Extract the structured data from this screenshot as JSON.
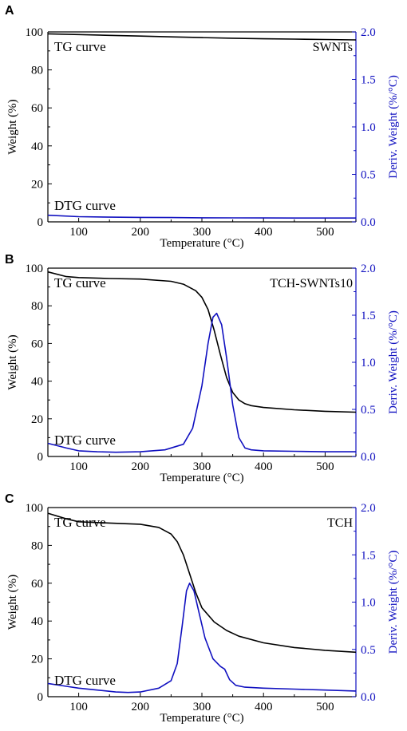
{
  "colors": {
    "tg": "#000000",
    "dtg": "#1010c0",
    "axis_left": "#000000",
    "axis_right": "#1010c0"
  },
  "chart_data": [
    {
      "panel": "A",
      "type": "line",
      "sample_label": "SWNTs",
      "tg_label": "TG curve",
      "dtg_label": "DTG curve",
      "xlabel": "Temperature (°C)",
      "ylabel": "Weight (%)",
      "ylabel_right": "Deriv. Weight (%/°C)",
      "xlim": [
        50,
        550
      ],
      "ylim": [
        0,
        100
      ],
      "ylim_right": [
        0,
        2.0
      ],
      "xticks": [
        100,
        200,
        300,
        400,
        500
      ],
      "yticks": [
        0,
        20,
        40,
        60,
        80,
        100
      ],
      "yticks_right": [
        "0.0",
        "0.5",
        "1.0",
        "1.5",
        "2.0"
      ],
      "series": [
        {
          "name": "TG curve",
          "axis": "left",
          "x": [
            50,
            100,
            150,
            200,
            250,
            300,
            350,
            400,
            450,
            500,
            550
          ],
          "y": [
            99,
            98.6,
            98.2,
            97.8,
            97.4,
            97.0,
            96.7,
            96.4,
            96.2,
            96.0,
            95.8
          ]
        },
        {
          "name": "DTG curve",
          "axis": "right",
          "x": [
            50,
            100,
            150,
            200,
            250,
            300,
            350,
            400,
            450,
            500,
            550
          ],
          "y": [
            0.07,
            0.055,
            0.05,
            0.047,
            0.045,
            0.043,
            0.042,
            0.041,
            0.04,
            0.04,
            0.04
          ]
        }
      ]
    },
    {
      "panel": "B",
      "type": "line",
      "sample_label": "TCH-SWNTs10",
      "tg_label": "TG curve",
      "dtg_label": "DTG curve",
      "xlabel": "Temperature (°C)",
      "ylabel": "Weight (%)",
      "ylabel_right": "Deriv. Weight (%/°C)",
      "xlim": [
        50,
        550
      ],
      "ylim": [
        0,
        100
      ],
      "ylim_right": [
        0,
        2.0
      ],
      "xticks": [
        100,
        200,
        300,
        400,
        500
      ],
      "yticks": [
        0,
        20,
        40,
        60,
        80,
        100
      ],
      "yticks_right": [
        "0.0",
        "0.5",
        "1.0",
        "1.5",
        "2.0"
      ],
      "series": [
        {
          "name": "TG curve",
          "axis": "left",
          "x": [
            50,
            80,
            100,
            150,
            200,
            250,
            270,
            290,
            300,
            310,
            320,
            330,
            340,
            350,
            360,
            370,
            380,
            400,
            450,
            500,
            550
          ],
          "y": [
            98,
            95.5,
            95,
            94.5,
            94.2,
            93,
            91.5,
            88,
            84.5,
            78,
            67,
            54,
            42,
            34,
            30,
            28,
            27,
            26,
            24.8,
            24,
            23.5
          ]
        },
        {
          "name": "DTG curve",
          "axis": "right",
          "x": [
            50,
            80,
            100,
            130,
            160,
            200,
            240,
            270,
            285,
            300,
            310,
            318,
            324,
            332,
            340,
            350,
            360,
            370,
            380,
            400,
            450,
            500,
            550
          ],
          "y": [
            0.14,
            0.09,
            0.06,
            0.05,
            0.045,
            0.05,
            0.07,
            0.13,
            0.3,
            0.75,
            1.2,
            1.48,
            1.52,
            1.4,
            1.05,
            0.55,
            0.2,
            0.09,
            0.07,
            0.06,
            0.055,
            0.05,
            0.05
          ]
        }
      ]
    },
    {
      "panel": "C",
      "type": "line",
      "sample_label": "TCH",
      "tg_label": "TG curve",
      "dtg_label": "DTG curve",
      "xlabel": "Temperature (°C)",
      "ylabel": "Weight (%)",
      "ylabel_right": "Deriv. Weight (%/°C)",
      "xlim": [
        50,
        550
      ],
      "ylim": [
        0,
        100
      ],
      "ylim_right": [
        0,
        2.0
      ],
      "xticks": [
        100,
        200,
        300,
        400,
        500
      ],
      "yticks": [
        0,
        20,
        40,
        60,
        80,
        100
      ],
      "yticks_right": [
        "0.0",
        "0.5",
        "1.0",
        "1.5",
        "2.0"
      ],
      "series": [
        {
          "name": "TG curve",
          "axis": "left",
          "x": [
            50,
            80,
            100,
            150,
            200,
            230,
            250,
            260,
            270,
            280,
            290,
            300,
            320,
            340,
            360,
            400,
            450,
            500,
            550
          ],
          "y": [
            97,
            94,
            92.5,
            91.8,
            91.2,
            89.5,
            86,
            82,
            75,
            65,
            55,
            47,
            39.5,
            35,
            32,
            28.5,
            26,
            24.5,
            23.5
          ]
        },
        {
          "name": "DTG curve",
          "axis": "right",
          "x": [
            50,
            80,
            100,
            130,
            160,
            180,
            200,
            230,
            250,
            260,
            268,
            275,
            280,
            287,
            295,
            305,
            318,
            330,
            337,
            345,
            355,
            370,
            400,
            450,
            500,
            550
          ],
          "y": [
            0.14,
            0.11,
            0.09,
            0.07,
            0.05,
            0.045,
            0.05,
            0.09,
            0.17,
            0.35,
            0.75,
            1.12,
            1.2,
            1.12,
            0.9,
            0.62,
            0.4,
            0.32,
            0.29,
            0.18,
            0.12,
            0.1,
            0.09,
            0.08,
            0.07,
            0.06
          ]
        }
      ]
    }
  ]
}
